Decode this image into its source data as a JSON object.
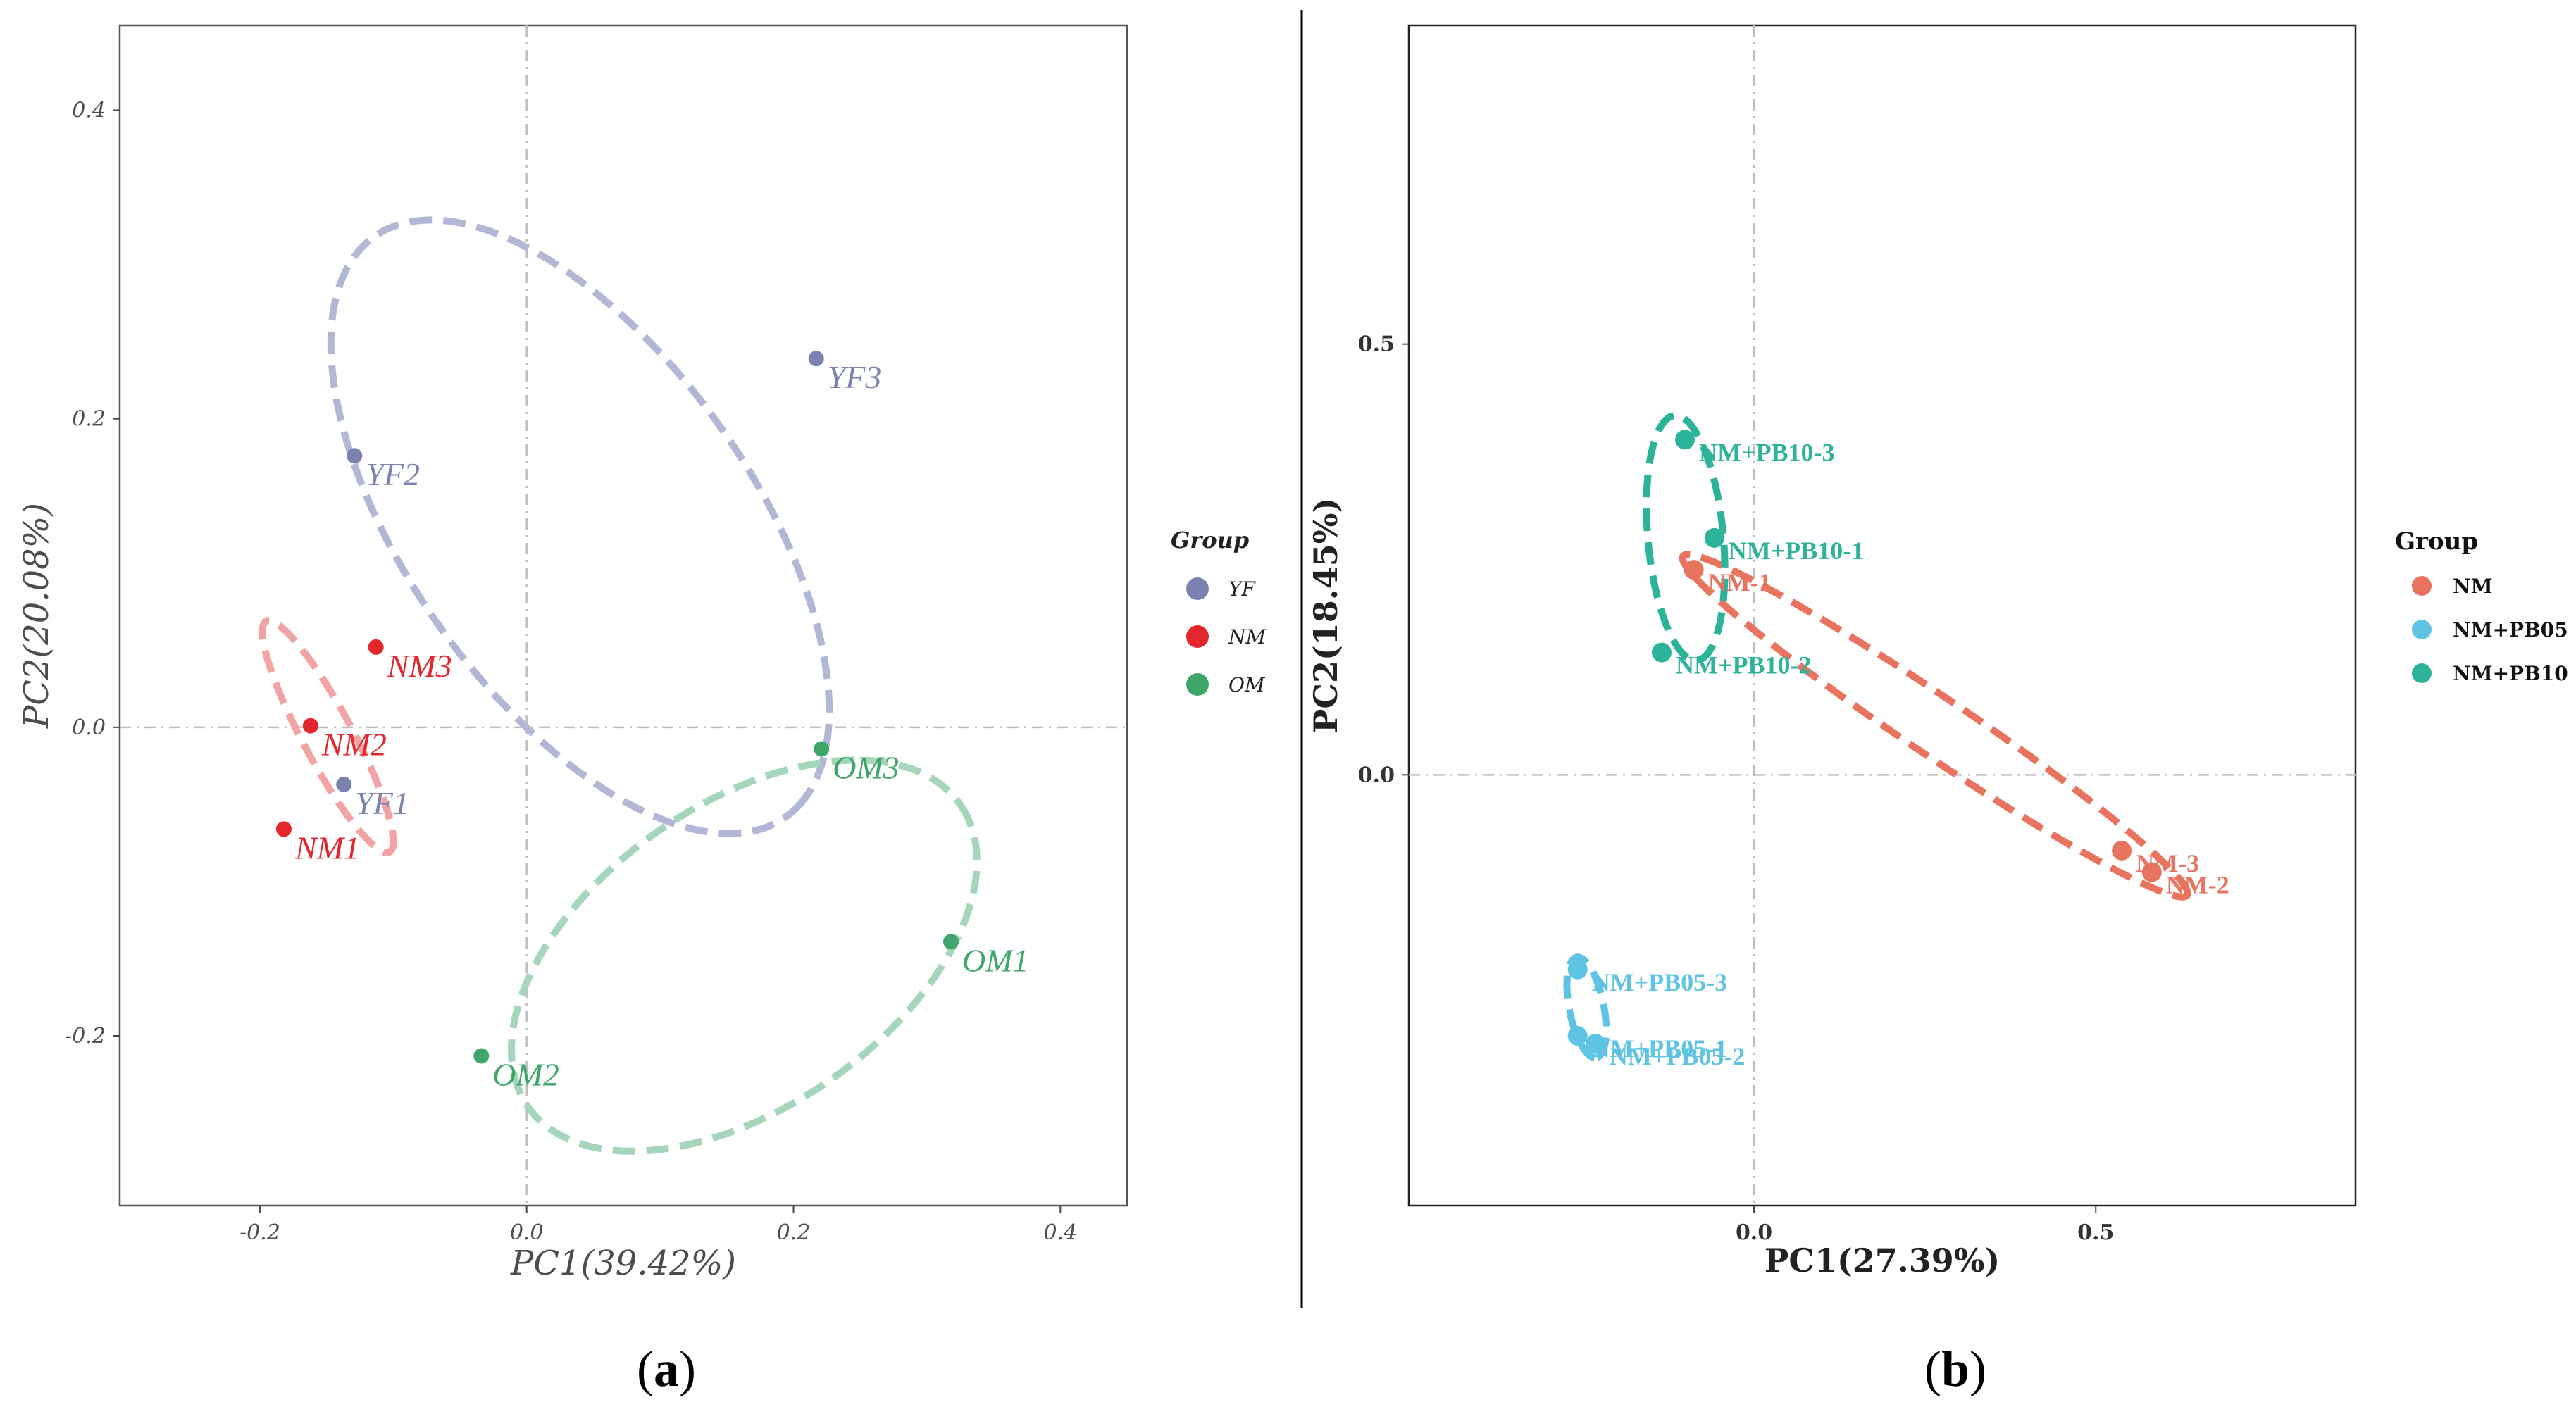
{
  "chart_data": [
    {
      "id": "a",
      "type": "scatter",
      "panel_label": "(a)",
      "panel_label_letter": "a",
      "xlabel": "PC1(39.42%)",
      "ylabel": "PC2(20.08%)",
      "xlim": [
        -0.305,
        0.45
      ],
      "ylim": [
        -0.31,
        0.455
      ],
      "xticks": [
        -0.2,
        0.0,
        0.2,
        0.4
      ],
      "xtick_labels": [
        "-0.2",
        "0.0",
        "0.2",
        "0.4"
      ],
      "yticks": [
        -0.2,
        0.0,
        0.2,
        0.4
      ],
      "ytick_labels": [
        "-0.2",
        "0.0",
        "0.2",
        "0.4"
      ],
      "legend": {
        "title": "Group",
        "position": "right",
        "entries": [
          "YF",
          "NM",
          "OM"
        ]
      },
      "series": [
        {
          "name": "YF",
          "color": "#7b82b2",
          "ellipse_color": "#b3b7d6",
          "points": [
            {
              "label": "YF1",
              "x": -0.137,
              "y": -0.037
            },
            {
              "label": "YF2",
              "x": -0.129,
              "y": 0.176
            },
            {
              "label": "YF3",
              "x": 0.217,
              "y": 0.239
            }
          ],
          "ellipse": {
            "cx": 0.04,
            "cy": 0.13,
            "rx": 0.244,
            "ry": 0.122,
            "angle_deg": -48
          }
        },
        {
          "name": "NM",
          "color": "#e3262b",
          "ellipse_color": "#f2a3a3",
          "points": [
            {
              "label": "NM1",
              "x": -0.182,
              "y": -0.066
            },
            {
              "label": "NM2",
              "x": -0.162,
              "y": 0.001
            },
            {
              "label": "NM3",
              "x": -0.113,
              "y": 0.052
            }
          ],
          "ellipse": {
            "cx": -0.149,
            "cy": -0.006,
            "rx": 0.088,
            "ry": 0.018,
            "angle_deg": -58
          }
        },
        {
          "name": "OM",
          "color": "#3fa66a",
          "ellipse_color": "#a5d6bc",
          "points": [
            {
              "label": "OM1",
              "x": 0.318,
              "y": -0.139
            },
            {
              "label": "OM2",
              "x": -0.034,
              "y": -0.213
            },
            {
              "label": "OM3",
              "x": 0.221,
              "y": -0.014
            }
          ],
          "ellipse": {
            "cx": 0.163,
            "cy": -0.148,
            "rx": 0.19,
            "ry": 0.102,
            "angle_deg": 28
          }
        }
      ]
    },
    {
      "id": "b",
      "type": "scatter",
      "panel_label": "(b)",
      "panel_label_letter": "b",
      "xlabel": "PC1(27.39%)",
      "ylabel": "PC2(18.45%)",
      "xlim": [
        -0.505,
        0.88
      ],
      "ylim": [
        -0.5,
        0.87
      ],
      "xticks": [
        0.0,
        0.5
      ],
      "xtick_labels": [
        "0.0",
        "0.5"
      ],
      "yticks": [
        0.0,
        0.5
      ],
      "ytick_labels": [
        "0.0",
        "0.5"
      ],
      "legend": {
        "title": "Group",
        "position": "right",
        "entries": [
          "NM",
          "NM+PB05",
          "NM+PB10"
        ]
      },
      "series": [
        {
          "name": "NM",
          "color": "#e8735f",
          "ellipse_color": "#e8735f",
          "points": [
            {
              "label": "NM-1",
              "x": -0.088,
              "y": 0.238
            },
            {
              "label": "NM-2",
              "x": 0.582,
              "y": -0.113
            },
            {
              "label": "NM-3",
              "x": 0.538,
              "y": -0.088
            }
          ],
          "ellipse": {
            "cx": 0.265,
            "cy": 0.057,
            "rx": 0.418,
            "ry": 0.036,
            "angle_deg": -28
          }
        },
        {
          "name": "NM+PB05",
          "color": "#5fc3e3",
          "ellipse_color": "#5fc3e3",
          "points": [
            {
              "label": "NM+PB05-1",
              "x": -0.258,
              "y": -0.303
            },
            {
              "label": "NM+PB05-2",
              "x": -0.232,
              "y": -0.312
            },
            {
              "label": "NM+PB05-3",
              "x": -0.258,
              "y": -0.226
            }
          ],
          "ellipse": {
            "cx": -0.245,
            "cy": -0.27,
            "rx": 0.06,
            "ry": 0.025,
            "angle_deg": -75
          }
        },
        {
          "name": "NM+PB10",
          "color": "#2db39a",
          "ellipse_color": "#2db39a",
          "points": [
            {
              "label": "NM+PB10-1",
              "x": -0.058,
              "y": 0.275
            },
            {
              "label": "NM+PB10-2",
              "x": -0.135,
              "y": 0.142
            },
            {
              "label": "NM+PB10-3",
              "x": -0.101,
              "y": 0.389
            }
          ],
          "ellipse": {
            "cx": -0.1,
            "cy": 0.275,
            "rx": 0.143,
            "ry": 0.055,
            "angle_deg": -83
          }
        }
      ]
    }
  ]
}
